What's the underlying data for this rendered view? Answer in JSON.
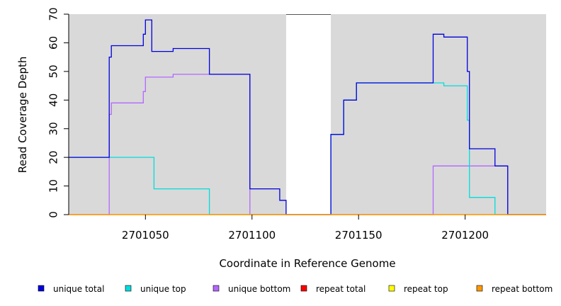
{
  "chart_data": {
    "type": "line",
    "xlabel": "Coordinate in Reference Genome",
    "ylabel": "Read Coverage Depth",
    "xlim": [
      2701014,
      2701238
    ],
    "ylim": [
      0,
      70
    ],
    "x_ticks": [
      2701050,
      2701100,
      2701150,
      2701200
    ],
    "y_ticks": [
      0,
      10,
      20,
      30,
      40,
      50,
      60,
      70
    ],
    "background_color": "#d9d9d9",
    "gap_region": [
      2701116,
      2701137
    ],
    "grid": false,
    "legend_position": "bottom",
    "series": [
      {
        "name": "unique total",
        "color": "#0000dd",
        "points": [
          [
            2701014,
            20
          ],
          [
            2701033,
            20
          ],
          [
            2701033,
            55
          ],
          [
            2701034,
            55
          ],
          [
            2701034,
            59
          ],
          [
            2701049,
            59
          ],
          [
            2701049,
            63
          ],
          [
            2701050,
            63
          ],
          [
            2701050,
            68
          ],
          [
            2701053,
            68
          ],
          [
            2701053,
            57
          ],
          [
            2701063,
            57
          ],
          [
            2701063,
            58
          ],
          [
            2701080,
            58
          ],
          [
            2701080,
            49
          ],
          [
            2701099,
            49
          ],
          [
            2701099,
            9
          ],
          [
            2701113,
            9
          ],
          [
            2701113,
            5
          ],
          [
            2701116,
            5
          ],
          [
            2701116,
            0
          ],
          [
            2701137,
            0
          ],
          [
            2701137,
            28
          ],
          [
            2701143,
            28
          ],
          [
            2701143,
            40
          ],
          [
            2701149,
            40
          ],
          [
            2701149,
            46
          ],
          [
            2701185,
            46
          ],
          [
            2701185,
            63
          ],
          [
            2701190,
            63
          ],
          [
            2701190,
            62
          ],
          [
            2701201,
            62
          ],
          [
            2701201,
            50
          ],
          [
            2701202,
            50
          ],
          [
            2701202,
            23
          ],
          [
            2701214,
            23
          ],
          [
            2701214,
            17
          ],
          [
            2701220,
            17
          ],
          [
            2701220,
            0
          ],
          [
            2701238,
            0
          ]
        ]
      },
      {
        "name": "unique top",
        "color": "#00dddd",
        "points": [
          [
            2701014,
            20
          ],
          [
            2701054,
            20
          ],
          [
            2701054,
            9
          ],
          [
            2701080,
            9
          ],
          [
            2701080,
            0
          ],
          [
            2701116,
            0
          ],
          [
            2701137,
            0
          ],
          [
            2701137,
            28
          ],
          [
            2701143,
            28
          ],
          [
            2701143,
            40
          ],
          [
            2701149,
            40
          ],
          [
            2701149,
            46
          ],
          [
            2701190,
            46
          ],
          [
            2701190,
            45
          ],
          [
            2701201,
            45
          ],
          [
            2701201,
            33
          ],
          [
            2701202,
            33
          ],
          [
            2701202,
            6
          ],
          [
            2701214,
            6
          ],
          [
            2701214,
            0
          ],
          [
            2701238,
            0
          ]
        ]
      },
      {
        "name": "unique bottom",
        "color": "#b366ff",
        "points": [
          [
            2701014,
            0
          ],
          [
            2701033,
            0
          ],
          [
            2701033,
            35
          ],
          [
            2701034,
            35
          ],
          [
            2701034,
            39
          ],
          [
            2701049,
            39
          ],
          [
            2701049,
            43
          ],
          [
            2701050,
            43
          ],
          [
            2701050,
            48
          ],
          [
            2701063,
            48
          ],
          [
            2701063,
            49
          ],
          [
            2701099,
            49
          ],
          [
            2701099,
            0
          ],
          [
            2701116,
            0
          ],
          [
            2701137,
            0
          ],
          [
            2701185,
            0
          ],
          [
            2701185,
            17
          ],
          [
            2701220,
            17
          ],
          [
            2701220,
            0
          ],
          [
            2701238,
            0
          ]
        ]
      },
      {
        "name": "repeat total",
        "color": "#ff0000",
        "points": [
          [
            2701014,
            0
          ],
          [
            2701238,
            0
          ]
        ]
      },
      {
        "name": "repeat top",
        "color": "#ffff00",
        "points": [
          [
            2701014,
            0
          ],
          [
            2701238,
            0
          ]
        ]
      },
      {
        "name": "repeat bottom",
        "color": "#ff9900",
        "points": [
          [
            2701014,
            0
          ],
          [
            2701238,
            0
          ]
        ]
      }
    ]
  }
}
